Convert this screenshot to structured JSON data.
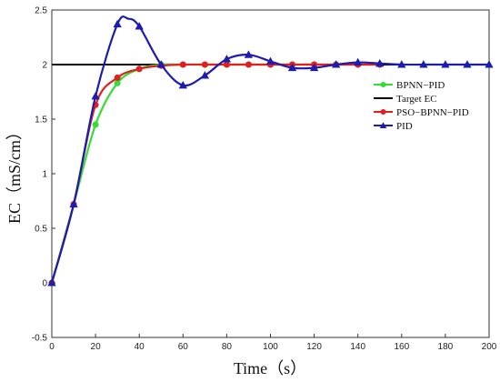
{
  "chart_data": {
    "type": "line",
    "xlabel": "Time（s）",
    "ylabel": "EC（mS/cm）",
    "xlim": [
      0,
      200
    ],
    "ylim": [
      -0.5,
      2.5
    ],
    "xticks": [
      "0",
      "20",
      "40",
      "60",
      "80",
      "100",
      "120",
      "140",
      "160",
      "180",
      "200"
    ],
    "yticks": [
      "-0.5",
      "0",
      "0.5",
      "1",
      "1.5",
      "2",
      "2.5"
    ],
    "grid": false,
    "legend_position": "right",
    "series": [
      {
        "name": "BPNN−PID",
        "color": "#33dd33",
        "marker": "circle",
        "x": [
          0,
          10,
          20,
          30,
          40,
          50,
          60,
          70,
          80,
          90,
          100,
          110,
          120,
          130,
          140,
          150
        ],
        "y": [
          0,
          0.72,
          1.45,
          1.83,
          1.96,
          2.0,
          2.0,
          2.0,
          2.0,
          2.0,
          2.0,
          2.0,
          2.0,
          2.0,
          2.0,
          2.0
        ]
      },
      {
        "name": "Target EC",
        "color": "#000000",
        "marker": "none",
        "x": [
          0,
          200
        ],
        "y": [
          2.0,
          2.0
        ]
      },
      {
        "name": "PSO−BPNN−PID",
        "color": "#e02020",
        "marker": "circle",
        "x": [
          0,
          10,
          20,
          30,
          40,
          50,
          60,
          70,
          80,
          90,
          100,
          110,
          120,
          130,
          140,
          150
        ],
        "y": [
          0,
          0.72,
          1.63,
          1.88,
          1.96,
          1.99,
          2.0,
          2.0,
          2.0,
          2.0,
          2.0,
          2.0,
          2.0,
          2.0,
          2.0,
          2.0
        ]
      },
      {
        "name": "PID",
        "color": "#1c1cb0",
        "marker": "triangle",
        "x": [
          0,
          10,
          20,
          30,
          35,
          40,
          50,
          60,
          70,
          80,
          90,
          100,
          110,
          120,
          130,
          140,
          150,
          160,
          170,
          180,
          190,
          200
        ],
        "y": [
          0,
          0.72,
          1.71,
          2.37,
          2.42,
          2.35,
          2.0,
          1.81,
          1.9,
          2.05,
          2.09,
          2.03,
          1.97,
          1.97,
          2.0,
          2.02,
          2.01,
          2.0,
          2.0,
          2.0,
          2.0,
          2.0
        ],
        "marker_x": [
          0,
          10,
          20,
          30,
          40,
          50,
          60,
          70,
          80,
          90,
          100,
          110,
          120,
          130,
          140,
          150,
          160,
          170,
          180,
          190,
          200
        ]
      }
    ]
  }
}
